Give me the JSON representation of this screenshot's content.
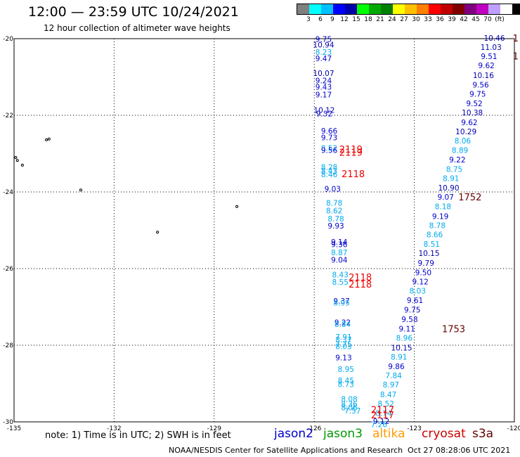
{
  "title": "12:00 — 23:59 UTC 10/24/2021",
  "subtitle": "12 hour collection of altimeter wave heights",
  "legend": {
    "unit": "(ft)",
    "colors": [
      "#808080",
      "#00ffff",
      "#00c0ff",
      "#0000ff",
      "#0000aa",
      "#00ff00",
      "#00aa00",
      "#008000",
      "#ffff00",
      "#ffc000",
      "#ff8000",
      "#ff0000",
      "#c00000",
      "#800000",
      "#800080",
      "#c000c0",
      "#c0a0ff",
      "#ffffff",
      "#000000"
    ],
    "labels": [
      "3",
      "6",
      "9",
      "12",
      "15",
      "18",
      "21",
      "24",
      "27",
      "30",
      "33",
      "36",
      "39",
      "42",
      "45",
      "70"
    ]
  },
  "axes": {
    "lon_labels": [
      "-135",
      "-132",
      "-129",
      "-126",
      "-123",
      "-120"
    ],
    "lat_labels": [
      "-20",
      "-22",
      "-24",
      "-26",
      "-28",
      "-30"
    ],
    "lon_range": [
      -135,
      -120
    ],
    "lat_range": [
      -20,
      -30
    ]
  },
  "islands": [
    {
      "lon": -134.03,
      "lat": -22.64
    },
    {
      "lon": -133.95,
      "lat": -22.62
    },
    {
      "lon": -134.95,
      "lat": -23.1
    },
    {
      "lon": -134.9,
      "lat": -23.18
    },
    {
      "lon": -134.75,
      "lat": -23.3
    },
    {
      "lon": -133.0,
      "lat": -23.95
    },
    {
      "lon": -130.7,
      "lat": -25.05
    },
    {
      "lon": -128.32,
      "lat": -24.38
    }
  ],
  "tracks": [
    {
      "name": "track-west-a",
      "points": [
        {
          "lon": -125.72,
          "lat": -20.01,
          "v": "9.75",
          "c": "#0000cc"
        },
        {
          "lon": -125.72,
          "lat": -20.16,
          "v": "10.94",
          "c": "#0000aa"
        },
        {
          "lon": -125.72,
          "lat": -20.35,
          "v": "8.23",
          "c": "#00aaee"
        },
        {
          "lon": -125.72,
          "lat": -20.51,
          "v": "9.47",
          "c": "#0000cc"
        },
        {
          "lon": -125.72,
          "lat": -20.9,
          "v": "10.07",
          "c": "#0000aa"
        },
        {
          "lon": -125.72,
          "lat": -21.09,
          "v": "9.24",
          "c": "#0000cc"
        },
        {
          "lon": -125.72,
          "lat": -21.26,
          "v": "9.43",
          "c": "#0000cc"
        },
        {
          "lon": -125.72,
          "lat": -21.46,
          "v": "9.17",
          "c": "#0000cc"
        },
        {
          "lon": -125.7,
          "lat": -21.86,
          "v": "10.12",
          "c": "#0000aa"
        },
        {
          "lon": -125.7,
          "lat": -21.95,
          "v": "9.32",
          "c": "#0000cc"
        },
        {
          "lon": -125.55,
          "lat": -22.4,
          "v": "9.66",
          "c": "#0000cc"
        },
        {
          "lon": -125.55,
          "lat": -22.58,
          "v": "9.73",
          "c": "#0000cc"
        },
        {
          "lon": -125.55,
          "lat": -22.85,
          "v": "8.52",
          "c": "#00aaee"
        },
        {
          "lon": -125.55,
          "lat": -22.91,
          "v": "9.56",
          "c": "#0000cc"
        },
        {
          "lon": -125.55,
          "lat": -23.35,
          "v": "8.28",
          "c": "#00aaee"
        },
        {
          "lon": -125.55,
          "lat": -23.45,
          "v": "8.43",
          "c": "#00aaee"
        },
        {
          "lon": -125.55,
          "lat": -23.54,
          "v": "8.46",
          "c": "#00aaee"
        },
        {
          "lon": -125.45,
          "lat": -23.92,
          "v": "9.03",
          "c": "#0000cc"
        },
        {
          "lon": -125.4,
          "lat": -24.28,
          "v": "8.78",
          "c": "#00aaee"
        },
        {
          "lon": -125.4,
          "lat": -24.49,
          "v": "8.62",
          "c": "#00aaee"
        },
        {
          "lon": -125.35,
          "lat": -24.7,
          "v": "8.78",
          "c": "#00aaee"
        },
        {
          "lon": -125.35,
          "lat": -24.88,
          "v": "9.93",
          "c": "#0000cc"
        },
        {
          "lon": -125.25,
          "lat": -25.3,
          "v": "9.14",
          "c": "#0000cc"
        },
        {
          "lon": -125.25,
          "lat": -25.37,
          "v": "9.36",
          "c": "#0000cc"
        },
        {
          "lon": -125.25,
          "lat": -25.58,
          "v": "8.87",
          "c": "#00aaee"
        },
        {
          "lon": -125.25,
          "lat": -25.77,
          "v": "9.04",
          "c": "#0000cc"
        },
        {
          "lon": -125.22,
          "lat": -26.16,
          "v": "8.43",
          "c": "#00aaee"
        },
        {
          "lon": -125.22,
          "lat": -26.35,
          "v": "8.55",
          "c": "#00aaee"
        },
        {
          "lon": -125.18,
          "lat": -26.84,
          "v": "9.37",
          "c": "#0000cc"
        },
        {
          "lon": -125.18,
          "lat": -26.89,
          "v": "8.95",
          "c": "#00aaee"
        },
        {
          "lon": -125.15,
          "lat": -27.4,
          "v": "9.22",
          "c": "#0000cc"
        },
        {
          "lon": -125.15,
          "lat": -27.45,
          "v": "8.84",
          "c": "#00aaee"
        },
        {
          "lon": -125.12,
          "lat": -27.78,
          "v": "7.91",
          "c": "#00aaee"
        },
        {
          "lon": -125.12,
          "lat": -27.85,
          "v": "8.37",
          "c": "#00aaee"
        },
        {
          "lon": -125.12,
          "lat": -27.97,
          "v": "7.75",
          "c": "#00aaee"
        },
        {
          "lon": -125.12,
          "lat": -28.03,
          "v": "8.03",
          "c": "#00aaee"
        },
        {
          "lon": -125.12,
          "lat": -28.32,
          "v": "9.13",
          "c": "#0000cc"
        },
        {
          "lon": -125.05,
          "lat": -28.62,
          "v": "8.95",
          "c": "#00aaee"
        },
        {
          "lon": -125.05,
          "lat": -28.92,
          "v": "8.45",
          "c": "#00aaee"
        },
        {
          "lon": -125.05,
          "lat": -29.02,
          "v": "8.73",
          "c": "#00aaee"
        },
        {
          "lon": -124.95,
          "lat": -29.4,
          "v": "8.08",
          "c": "#00aaee"
        },
        {
          "lon": -124.95,
          "lat": -29.53,
          "v": "8.36",
          "c": "#00aaee"
        },
        {
          "lon": -124.95,
          "lat": -29.62,
          "v": "8.06",
          "c": "#00aaee"
        },
        {
          "lon": -124.85,
          "lat": -29.71,
          "v": "7.57",
          "c": "#00aaee"
        }
      ]
    },
    {
      "name": "track-east-a",
      "points": [
        {
          "lon": -120.6,
          "lat": -19.98,
          "v": "10.46",
          "c": "#0000aa"
        },
        {
          "lon": -120.7,
          "lat": -20.22,
          "v": "11.03",
          "c": "#0000aa"
        },
        {
          "lon": -120.76,
          "lat": -20.46,
          "v": "9.51",
          "c": "#0000cc"
        },
        {
          "lon": -120.84,
          "lat": -20.7,
          "v": "9.62",
          "c": "#0000cc"
        },
        {
          "lon": -120.93,
          "lat": -20.95,
          "v": "10.16",
          "c": "#0000aa"
        },
        {
          "lon": -121.01,
          "lat": -21.2,
          "v": "9.56",
          "c": "#0000cc"
        },
        {
          "lon": -121.1,
          "lat": -21.44,
          "v": "9.75",
          "c": "#0000cc"
        },
        {
          "lon": -121.2,
          "lat": -21.69,
          "v": "9.52",
          "c": "#0000cc"
        },
        {
          "lon": -121.26,
          "lat": -21.93,
          "v": "10.38",
          "c": "#0000aa"
        },
        {
          "lon": -121.35,
          "lat": -22.18,
          "v": "9.62",
          "c": "#0000cc"
        },
        {
          "lon": -121.45,
          "lat": -22.42,
          "v": "10.29",
          "c": "#0000aa"
        },
        {
          "lon": -121.55,
          "lat": -22.66,
          "v": "8.06",
          "c": "#00aaee"
        },
        {
          "lon": -121.63,
          "lat": -22.91,
          "v": "8.89",
          "c": "#00aaee"
        },
        {
          "lon": -121.71,
          "lat": -23.16,
          "v": "9.22",
          "c": "#0000cc"
        },
        {
          "lon": -121.8,
          "lat": -23.4,
          "v": "8.75",
          "c": "#00aaee"
        },
        {
          "lon": -121.9,
          "lat": -23.64,
          "v": "8.91",
          "c": "#00aaee"
        },
        {
          "lon": -121.97,
          "lat": -23.89,
          "v": "10.90",
          "c": "#0000aa"
        },
        {
          "lon": -122.06,
          "lat": -24.13,
          "v": "9.07",
          "c": "#0000cc"
        },
        {
          "lon": -122.14,
          "lat": -24.38,
          "v": "8.18",
          "c": "#00aaee"
        },
        {
          "lon": -122.22,
          "lat": -24.63,
          "v": "9.19",
          "c": "#0000cc"
        },
        {
          "lon": -122.31,
          "lat": -24.87,
          "v": "8.78",
          "c": "#00aaee"
        },
        {
          "lon": -122.39,
          "lat": -25.11,
          "v": "8.66",
          "c": "#00aaee"
        },
        {
          "lon": -122.48,
          "lat": -25.36,
          "v": "8.51",
          "c": "#00aaee"
        },
        {
          "lon": -122.56,
          "lat": -25.6,
          "v": "10.15",
          "c": "#0000aa"
        },
        {
          "lon": -122.65,
          "lat": -25.85,
          "v": "9.79",
          "c": "#0000cc"
        },
        {
          "lon": -122.73,
          "lat": -26.1,
          "v": "9.50",
          "c": "#0000cc"
        },
        {
          "lon": -122.82,
          "lat": -26.34,
          "v": "9.12",
          "c": "#0000cc"
        },
        {
          "lon": -122.9,
          "lat": -26.58,
          "v": "8.03",
          "c": "#00aaee"
        },
        {
          "lon": -122.98,
          "lat": -26.83,
          "v": "9.61",
          "c": "#0000cc"
        },
        {
          "lon": -123.06,
          "lat": -27.07,
          "v": "9.75",
          "c": "#0000cc"
        },
        {
          "lon": -123.14,
          "lat": -27.32,
          "v": "9.58",
          "c": "#0000cc"
        },
        {
          "lon": -123.22,
          "lat": -27.57,
          "v": "9.11",
          "c": "#0000cc"
        },
        {
          "lon": -123.3,
          "lat": -27.81,
          "v": "8.96",
          "c": "#00aaee"
        },
        {
          "lon": -123.38,
          "lat": -28.06,
          "v": "10.15",
          "c": "#0000aa"
        },
        {
          "lon": -123.46,
          "lat": -28.3,
          "v": "8.91",
          "c": "#00aaee"
        },
        {
          "lon": -123.54,
          "lat": -28.55,
          "v": "9.86",
          "c": "#0000cc"
        },
        {
          "lon": -123.62,
          "lat": -28.79,
          "v": "7.84",
          "c": "#00aaee"
        },
        {
          "lon": -123.7,
          "lat": -29.03,
          "v": "8.97",
          "c": "#00aaee"
        },
        {
          "lon": -123.78,
          "lat": -29.28,
          "v": "8.47",
          "c": "#00aaee"
        },
        {
          "lon": -123.85,
          "lat": -29.52,
          "v": "8.52",
          "c": "#00aaee"
        },
        {
          "lon": -123.92,
          "lat": -29.77,
          "v": "8.74",
          "c": "#00aaee"
        },
        {
          "lon": -123.99,
          "lat": -29.98,
          "v": "9.12",
          "c": "#0000cc"
        },
        {
          "lon": -124.06,
          "lat": -30.06,
          "v": "7.26",
          "c": "#00aaee"
        }
      ]
    }
  ],
  "passes": [
    {
      "lon": -125.25,
      "lat": -22.88,
      "t": "2119",
      "c": "#ee0000"
    },
    {
      "lon": -125.25,
      "lat": -22.96,
      "t": "2119",
      "c": "#ee0000"
    },
    {
      "lon": -125.18,
      "lat": -23.52,
      "t": "2118",
      "c": "#ee0000"
    },
    {
      "lon": -124.97,
      "lat": -26.22,
      "t": "2118",
      "c": "#ee0000"
    },
    {
      "lon": -124.97,
      "lat": -26.4,
      "t": "2118",
      "c": "#ee0000"
    },
    {
      "lon": -124.3,
      "lat": -29.68,
      "t": "2117",
      "c": "#ee0000"
    },
    {
      "lon": -124.3,
      "lat": -29.82,
      "t": "2117",
      "c": "#ee0000"
    },
    {
      "lon": -121.68,
      "lat": -24.13,
      "t": "1752",
      "c": "#660000"
    },
    {
      "lon": -122.17,
      "lat": -27.57,
      "t": "1753",
      "c": "#660000"
    },
    {
      "lon": -120.05,
      "lat": -19.98,
      "t": "1",
      "c": "#660000"
    },
    {
      "lon": -120.05,
      "lat": -20.45,
      "t": "1",
      "c": "#660000"
    }
  ],
  "note": "note:  1) Time is in UTC; 2) SWH is in feet",
  "satellites": [
    {
      "name": "jason2",
      "color": "#0000cc"
    },
    {
      "name": "jason3",
      "color": "#009900"
    },
    {
      "name": "altika",
      "color": "#ff9900"
    },
    {
      "name": "cryosat",
      "color": "#cc0000"
    },
    {
      "name": "s3a",
      "color": "#660000"
    }
  ],
  "credit": "NOAA/NESDIS Center for Satellite Applications and Research",
  "timestamp": "Oct 27 08:28:06 UTC 2021"
}
